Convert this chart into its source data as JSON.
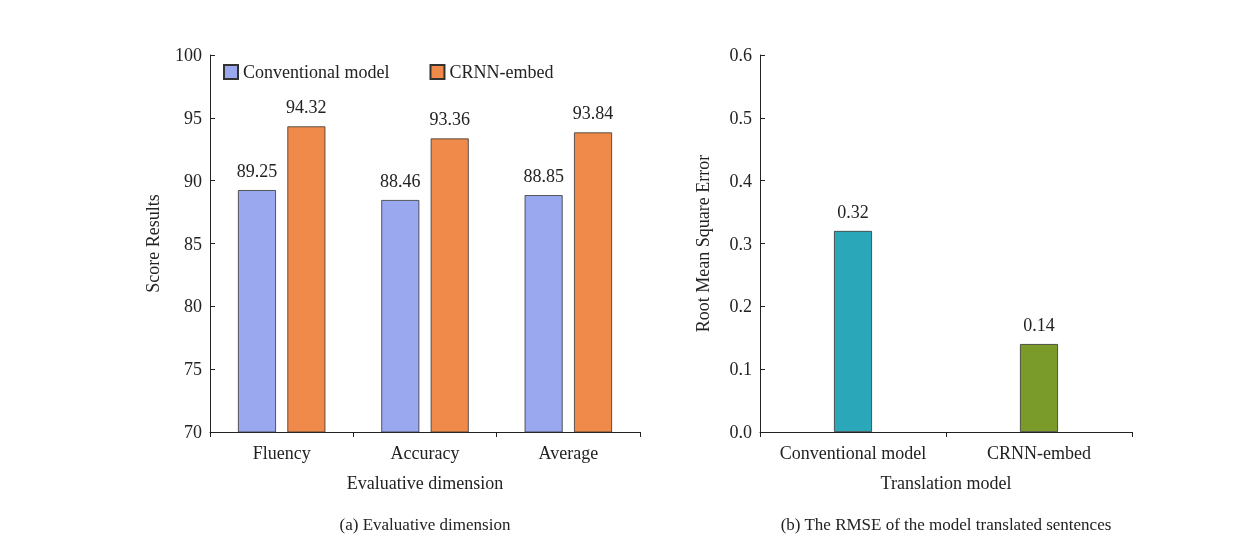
{
  "chart_data": [
    {
      "type": "bar",
      "xlabel": "Evaluative dimension",
      "ylabel": "Score Results",
      "annotations": [
        "(a) Evaluative dimension"
      ],
      "categories": [
        "Fluency",
        "Accuracy",
        "Average"
      ],
      "series": [
        {
          "name": "Conventional model",
          "color": "#9aa8f0",
          "values": [
            89.25,
            88.46,
            88.85
          ]
        },
        {
          "name": "CRNN-embed",
          "color": "#f08a4b",
          "values": [
            94.32,
            93.36,
            93.84
          ]
        }
      ],
      "ylim": [
        70,
        100
      ],
      "yticks": [
        70,
        75,
        80,
        85,
        90,
        95,
        100
      ],
      "data_labels": true,
      "legend": "top left",
      "grid": false
    },
    {
      "type": "bar",
      "xlabel": "Translation model",
      "ylabel": "Root Mean Square Error",
      "annotations": [
        "(b) The RMSE of the model translated sentences"
      ],
      "categories": [
        "Conventional model",
        "CRNN-embed"
      ],
      "values": [
        0.32,
        0.14
      ],
      "colors": [
        "#2aa7b8",
        "#7a9a2a"
      ],
      "ylim": [
        0,
        0.6
      ],
      "yticks": [
        {
          "value": 0,
          "label": "0.0"
        },
        {
          "value": 0.1,
          "label": "0.1"
        },
        {
          "value": 0.2,
          "label": "0.2"
        },
        {
          "value": 0.3,
          "label": "0.3"
        },
        {
          "value": 0.4,
          "label": "0.4"
        },
        {
          "value": 0.5,
          "label": "0.5"
        },
        {
          "value": 0.6,
          "label": "0.6"
        }
      ],
      "data_labels": true,
      "legend": false,
      "grid": false
    }
  ]
}
